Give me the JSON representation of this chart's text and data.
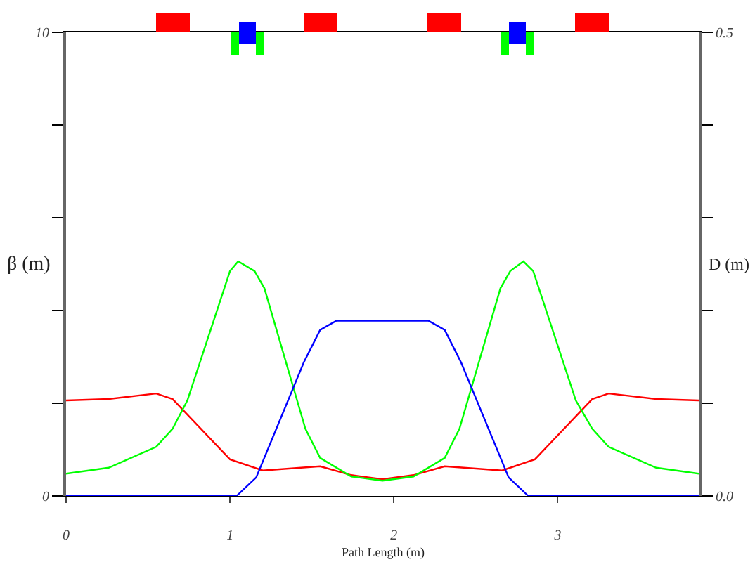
{
  "chart_data": {
    "type": "line",
    "xlabel": "Path Length (m)",
    "ylabel": "β (m)",
    "y2label": "D (m)",
    "xlim": [
      0,
      3.86
    ],
    "xticks": [
      0,
      1,
      2,
      3
    ],
    "ylim": [
      0,
      10
    ],
    "yticks": [
      0,
      {
        "value": 2,
        "label": null
      },
      {
        "value": 4,
        "label": null
      },
      {
        "value": 6,
        "label": null
      },
      {
        "value": 8,
        "label": null
      },
      10
    ],
    "y2lim": [
      0,
      0.5
    ],
    "y2ticks": [
      {
        "value": 0,
        "label": "0.0"
      },
      {
        "value": 0.1,
        "label": null
      },
      {
        "value": 0.2,
        "label": null
      },
      {
        "value": 0.3,
        "label": null
      },
      {
        "value": 0.4,
        "label": null
      },
      {
        "value": 0.5,
        "label": "0.5"
      }
    ],
    "marker": "none",
    "line_style": "solid",
    "series": [
      {
        "color": "#ff0000",
        "x": [
          0,
          0.26,
          0.55,
          0.65,
          1.0,
          1.2,
          1.55,
          1.74,
          1.93,
          2.12,
          2.31,
          2.66,
          2.86,
          3.21,
          3.31,
          3.6,
          3.86
        ],
        "values": [
          2.06,
          2.09,
          2.21,
          2.09,
          0.79,
          0.55,
          0.64,
          0.45,
          0.36,
          0.45,
          0.64,
          0.55,
          0.79,
          2.09,
          2.21,
          2.09,
          2.06
        ]
      },
      {
        "color": "#00ff00",
        "x": [
          0,
          0.26,
          0.55,
          0.65,
          0.74,
          1.0,
          1.05,
          1.15,
          1.21,
          1.46,
          1.55,
          1.74,
          1.93,
          2.12,
          2.31,
          2.4,
          2.65,
          2.71,
          2.79,
          2.85,
          3.11,
          3.21,
          3.31,
          3.6,
          3.86
        ],
        "values": [
          0.48,
          0.61,
          1.06,
          1.45,
          2.06,
          4.85,
          5.06,
          4.85,
          4.48,
          1.45,
          0.82,
          0.42,
          0.33,
          0.42,
          0.82,
          1.45,
          4.48,
          4.85,
          5.06,
          4.85,
          2.06,
          1.45,
          1.06,
          0.61,
          0.48
        ]
      },
      {
        "color": "#0000ff",
        "axis": "y2",
        "x": [
          0,
          1.04,
          1.16,
          1.45,
          1.55,
          1.65,
          2.21,
          2.31,
          2.41,
          2.7,
          2.82,
          3.86
        ],
        "values": [
          0,
          0,
          0.02,
          0.144,
          0.179,
          0.189,
          0.189,
          0.179,
          0.144,
          0.02,
          0,
          0
        ]
      }
    ]
  }
}
